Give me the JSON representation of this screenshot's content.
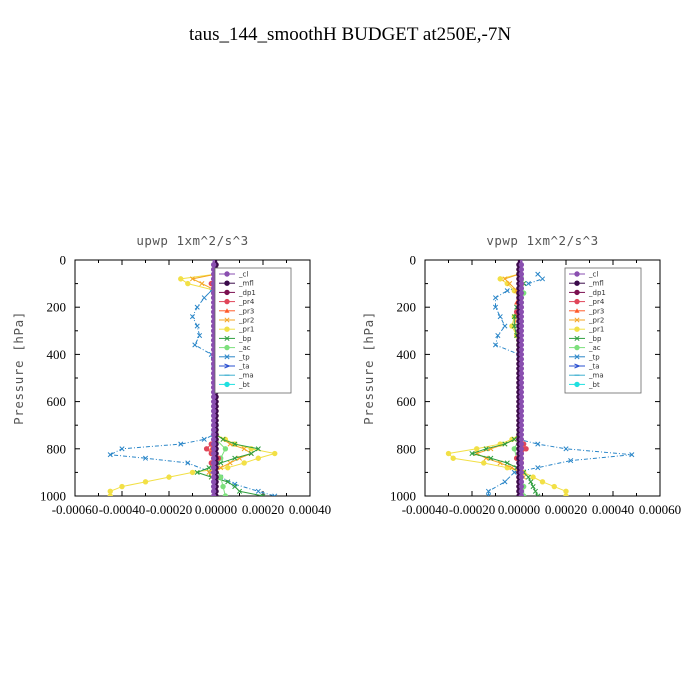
{
  "figure": {
    "title": "taus_144_smoothH  BUDGET at250E,-7N"
  },
  "legend_entries": [
    {
      "name": "_cl",
      "color": "#8a4fb0",
      "marker": "circle"
    },
    {
      "name": "_mfl",
      "color": "#3a0a4a",
      "marker": "circle"
    },
    {
      "name": "_dp1",
      "color": "#7a1050",
      "marker": "circle"
    },
    {
      "name": "_pr4",
      "color": "#e0465a",
      "marker": "circle"
    },
    {
      "name": "_pr3",
      "color": "#ff5a2a",
      "marker": "triangle"
    },
    {
      "name": "_pr2",
      "color": "#f5a623",
      "marker": "cross"
    },
    {
      "name": "_pr1",
      "color": "#f2e046",
      "marker": "circle"
    },
    {
      "name": "_bp",
      "color": "#2e9e3e",
      "marker": "cross"
    },
    {
      "name": "_ac",
      "color": "#7de07d",
      "marker": "circle"
    },
    {
      "name": "_tp",
      "color": "#2a86c8",
      "marker": "cross"
    },
    {
      "name": "_ta",
      "color": "#2a50d0",
      "marker": "arrow"
    },
    {
      "name": "_ma",
      "color": "#40b0d0",
      "marker": "dash"
    },
    {
      "name": "_bt",
      "color": "#20e0e0",
      "marker": "circle"
    }
  ],
  "chart_data": [
    {
      "type": "line",
      "title": "upwp   1xm^2/s^3",
      "ylabel": "Pressure [hPa]",
      "xlabel": "",
      "xlim": [
        -0.0006,
        0.0004
      ],
      "ylim": [
        1000,
        0
      ],
      "xticks": [
        -0.0006,
        -0.0004,
        -0.0002,
        0.0,
        0.0002,
        0.0004
      ],
      "xtick_labels": [
        "-0.00060",
        "-0.00040",
        "-0.00020",
        "0.00000",
        "0.00020",
        "0.00040"
      ],
      "yticks": [
        0,
        200,
        400,
        600,
        800,
        1000
      ],
      "ytick_labels": [
        "0",
        "200",
        "400",
        "600",
        "800",
        "1000"
      ],
      "legend_position": "top-right",
      "series": [
        {
          "name": "_tp",
          "color": "#2a86c8",
          "y": [
            60,
            80,
            100,
            130,
            160,
            200,
            240,
            280,
            320,
            360,
            400,
            700,
            740,
            760,
            780,
            800,
            825,
            840,
            860,
            900,
            920,
            950,
            980,
            1000
          ],
          "x": [
            8e-05,
            0.00015,
            2e-05,
            -2e-05,
            -5e-05,
            -8e-05,
            -0.0001,
            -8e-05,
            -7e-05,
            -9e-05,
            -2e-05,
            0.0,
            -1e-05,
            -5e-05,
            -0.00015,
            -0.0004,
            -0.00045,
            -0.0003,
            -0.00012,
            -2e-05,
            2e-05,
            8e-05,
            0.00018,
            0.00025
          ]
        },
        {
          "name": "_pr1",
          "color": "#f2e046",
          "y": [
            60,
            80,
            100,
            130,
            160,
            200,
            240,
            280,
            320,
            360,
            400,
            740,
            760,
            780,
            800,
            820,
            840,
            860,
            880,
            900,
            920,
            940,
            960,
            980,
            1000
          ],
          "x": [
            0.0,
            -0.00015,
            -0.00012,
            0.0,
            3e-05,
            3e-05,
            4e-05,
            3e-05,
            2e-05,
            1e-05,
            0.0,
            0.0,
            4e-05,
            8e-05,
            0.00015,
            0.00025,
            0.00018,
            0.00012,
            5e-05,
            -0.0001,
            -0.0002,
            -0.0003,
            -0.0004,
            -0.00045,
            -0.00045
          ]
        },
        {
          "name": "_pr2",
          "color": "#f5a623",
          "y": [
            60,
            80,
            100,
            130,
            160,
            200,
            240,
            280,
            320,
            360,
            740,
            760,
            780,
            800,
            820,
            840,
            860,
            880,
            900,
            920
          ],
          "x": [
            0.0,
            -0.0001,
            -6e-05,
            0.0,
            2e-05,
            3e-05,
            2e-05,
            2e-05,
            1e-05,
            0.0,
            0.0,
            3e-05,
            6e-05,
            0.00012,
            0.00015,
            0.0001,
            6e-05,
            2e-05,
            -3e-05,
            -2e-05
          ]
        },
        {
          "name": "_bp",
          "color": "#2e9e3e",
          "y": [
            60,
            80,
            100,
            130,
            160,
            200,
            240,
            280,
            320,
            360,
            740,
            760,
            780,
            800,
            820,
            840,
            860,
            880,
            900,
            920,
            940,
            960,
            980,
            1000
          ],
          "x": [
            0.0,
            2e-05,
            4e-05,
            4e-05,
            5e-05,
            6e-05,
            5e-05,
            5e-05,
            4e-05,
            0.0,
            0.0,
            3e-05,
            8e-05,
            0.00018,
            0.00015,
            8e-05,
            2e-05,
            -3e-05,
            -8e-05,
            -2e-05,
            5e-05,
            8e-05,
            0.0001,
            0.0002
          ]
        },
        {
          "name": "_ac",
          "color": "#7de07d",
          "y": [
            60,
            100,
            140,
            180,
            220,
            260,
            300,
            340,
            380,
            760,
            800,
            840,
            880,
            920,
            960,
            1000
          ],
          "x": [
            0.0,
            2e-05,
            3e-05,
            4e-05,
            3e-05,
            4e-05,
            3e-05,
            2e-05,
            0.0,
            0.0,
            4e-05,
            2e-05,
            0.0,
            2e-05,
            3e-05,
            4e-05
          ]
        },
        {
          "name": "_pr3",
          "color": "#ff5a2a",
          "y": [
            60,
            100,
            140,
            180,
            220,
            760,
            800,
            840,
            880,
            920
          ],
          "x": [
            0.0,
            -1e-05,
            0.0,
            1e-05,
            0.0,
            0.0,
            -2e-05,
            -1e-05,
            0.0,
            0.0
          ]
        },
        {
          "name": "_pr4",
          "color": "#e0465a",
          "y": [
            60,
            100,
            140,
            180,
            220,
            260,
            300,
            340,
            380,
            760,
            780,
            800,
            820,
            840,
            860,
            880,
            900,
            920
          ],
          "x": [
            0.0,
            -2e-05,
            -1e-05,
            0.0,
            1e-05,
            0.0,
            0.0,
            0.0,
            0.0,
            0.0,
            -2e-05,
            -4e-05,
            -2e-05,
            1e-05,
            -2e-05,
            -1e-05,
            0.0,
            0.0
          ]
        },
        {
          "name": "_dp1",
          "color": "#7a1050",
          "y": [
            0,
            1000
          ],
          "x": [
            0.0,
            0.0
          ]
        },
        {
          "name": "_mfl",
          "color": "#3a0a4a",
          "y": [
            0,
            1000
          ],
          "x": [
            0.0,
            0.0
          ]
        },
        {
          "name": "_cl",
          "color": "#8a4fb0",
          "y": [
            0,
            1000
          ],
          "x": [
            -1e-05,
            -1e-05
          ]
        }
      ]
    },
    {
      "type": "line",
      "title": "vpwp   1xm^2/s^3",
      "ylabel": "Pressure [hPa]",
      "xlabel": "",
      "xlim": [
        -0.0004,
        0.0006
      ],
      "ylim": [
        1000,
        0
      ],
      "xticks": [
        -0.0004,
        -0.0002,
        0.0,
        0.0002,
        0.0004,
        0.0006
      ],
      "xtick_labels": [
        "-0.00040",
        "-0.00020",
        "0.00000",
        "0.00020",
        "0.00040",
        "0.00060"
      ],
      "yticks": [
        0,
        200,
        400,
        600,
        800,
        1000
      ],
      "ytick_labels": [
        "0",
        "200",
        "400",
        "600",
        "800",
        "1000"
      ],
      "legend_position": "top-right",
      "series": [
        {
          "name": "_tp",
          "color": "#2a86c8",
          "y": [
            60,
            80,
            100,
            130,
            160,
            200,
            240,
            280,
            320,
            360,
            400,
            760,
            780,
            800,
            825,
            850,
            880,
            900,
            940,
            980,
            1000
          ],
          "x": [
            8e-05,
            0.0001,
            4e-05,
            -5e-05,
            -0.0001,
            -0.0001,
            -8e-05,
            -6e-05,
            -9e-05,
            -0.0001,
            0.0,
            0.0,
            8e-05,
            0.0002,
            0.00048,
            0.00022,
            8e-05,
            -2e-05,
            -6e-05,
            -0.00013,
            -0.00013
          ]
        },
        {
          "name": "_pr1",
          "color": "#f2e046",
          "y": [
            60,
            80,
            100,
            130,
            160,
            200,
            240,
            280,
            320,
            360,
            740,
            760,
            780,
            800,
            820,
            840,
            860,
            880,
            900,
            920,
            940,
            960,
            980,
            1000
          ],
          "x": [
            0.0,
            -8e-05,
            -5e-05,
            -2e-05,
            0.0,
            0.0,
            -2e-05,
            -3e-05,
            -1e-05,
            0.0,
            0.0,
            -3e-05,
            -8e-05,
            -0.00018,
            -0.0003,
            -0.00028,
            -0.00015,
            -5e-05,
            2e-05,
            6e-05,
            0.0001,
            0.00015,
            0.0002,
            0.0002
          ]
        },
        {
          "name": "_pr2",
          "color": "#f5a623",
          "y": [
            60,
            80,
            100,
            130,
            160,
            200,
            240,
            280,
            320,
            360,
            740,
            760,
            780,
            800,
            820,
            840,
            860,
            880,
            900,
            920
          ],
          "x": [
            0.0,
            -6e-05,
            -4e-05,
            -1e-05,
            0.0,
            0.0,
            -1e-05,
            -2e-05,
            -1e-05,
            0.0,
            0.0,
            -2e-05,
            -6e-05,
            -0.00012,
            -0.00018,
            -0.00014,
            -8e-05,
            -3e-05,
            1e-05,
            2e-05
          ]
        },
        {
          "name": "_bp",
          "color": "#2e9e3e",
          "y": [
            60,
            80,
            100,
            130,
            160,
            200,
            240,
            280,
            320,
            360,
            740,
            760,
            780,
            800,
            820,
            840,
            860,
            880,
            900,
            920,
            940,
            960,
            980,
            1000
          ],
          "x": [
            0.0,
            1e-05,
            2e-05,
            1e-05,
            0.0,
            -1e-05,
            -2e-05,
            -2e-05,
            -1e-05,
            0.0,
            0.0,
            -2e-05,
            -6e-05,
            -0.00014,
            -0.0002,
            -0.00012,
            -5e-05,
            -1e-05,
            2e-05,
            4e-05,
            5e-05,
            6e-05,
            7e-05,
            8e-05
          ]
        },
        {
          "name": "_ac",
          "color": "#7de07d",
          "y": [
            60,
            100,
            140,
            180,
            220,
            260,
            300,
            340,
            380,
            760,
            800,
            840,
            880,
            920,
            960,
            1000
          ],
          "x": [
            0.0,
            1e-05,
            2e-05,
            1e-05,
            0.0,
            1e-05,
            0.0,
            0.0,
            0.0,
            0.0,
            -2e-05,
            -1e-05,
            0.0,
            1e-05,
            2e-05,
            2e-05
          ]
        },
        {
          "name": "_pr3",
          "color": "#ff5a2a",
          "y": [
            60,
            100,
            140,
            180,
            220,
            760,
            800,
            840,
            880,
            920
          ],
          "x": [
            0.0,
            1e-05,
            0.0,
            -1e-05,
            0.0,
            0.0,
            2e-05,
            1e-05,
            0.0,
            0.0
          ]
        },
        {
          "name": "_pr4",
          "color": "#e0465a",
          "y": [
            60,
            100,
            140,
            180,
            220,
            260,
            300,
            340,
            380,
            760,
            780,
            800,
            820,
            840,
            860,
            880,
            900,
            920
          ],
          "x": [
            0.0,
            1e-05,
            0.0,
            0.0,
            -1e-05,
            0.0,
            0.0,
            0.0,
            0.0,
            0.0,
            2e-05,
            3e-05,
            1e-05,
            -1e-05,
            1e-05,
            0.0,
            0.0,
            0.0
          ]
        },
        {
          "name": "_dp1",
          "color": "#7a1050",
          "y": [
            0,
            1000
          ],
          "x": [
            0.0,
            0.0
          ]
        },
        {
          "name": "_mfl",
          "color": "#3a0a4a",
          "y": [
            0,
            1000
          ],
          "x": [
            0.0,
            0.0
          ]
        },
        {
          "name": "_cl",
          "color": "#8a4fb0",
          "y": [
            0,
            1000
          ],
          "x": [
            1e-05,
            1e-05
          ]
        }
      ]
    }
  ]
}
